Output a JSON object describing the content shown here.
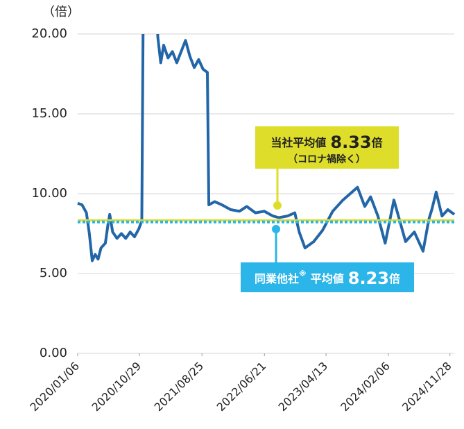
{
  "chart_data": {
    "type": "line",
    "y_label": "（倍）",
    "x": [
      "2020/01/06",
      "2020/01/27",
      "2020/02/17",
      "2020/03/02",
      "2020/03/16",
      "2020/03/30",
      "2020/04/13",
      "2020/04/27",
      "2020/05/18",
      "2020/06/01",
      "2020/06/08",
      "2020/06/22",
      "2020/07/13",
      "2020/08/03",
      "2020/08/24",
      "2020/09/14",
      "2020/10/05",
      "2020/10/26",
      "2020/11/09",
      "2020/11/16",
      "2021/01/18",
      "2021/01/25",
      "2021/02/08",
      "2021/02/22",
      "2021/03/15",
      "2021/04/05",
      "2021/04/26",
      "2021/06/07",
      "2021/06/28",
      "2021/07/19",
      "2021/08/09",
      "2021/08/30",
      "2021/09/20",
      "2021/09/27",
      "2021/10/25",
      "2021/11/29",
      "2022/01/10",
      "2022/02/21",
      "2022/03/28",
      "2022/05/09",
      "2022/06/20",
      "2022/08/01",
      "2022/08/29",
      "2022/10/10",
      "2022/11/14",
      "2022/12/05",
      "2023/01/02",
      "2023/02/13",
      "2023/03/27",
      "2023/05/15",
      "2023/07/03",
      "2023/09/11",
      "2023/10/16",
      "2023/11/13",
      "2023/12/18",
      "2024/01/22",
      "2024/03/04",
      "2024/04/29",
      "2024/06/10",
      "2024/07/22",
      "2024/08/19",
      "2024/09/02",
      "2024/09/23",
      "2024/10/21",
      "2024/11/18",
      "2024/12/19"
    ],
    "series": [
      {
        "color": "#2366a8",
        "values": [
          9.4,
          9.3,
          8.8,
          7.5,
          5.8,
          6.2,
          5.9,
          6.6,
          6.9,
          8.2,
          8.7,
          7.6,
          7.2,
          7.5,
          7.2,
          7.6,
          7.3,
          7.8,
          8.3,
          22,
          22,
          19.8,
          18.2,
          19.3,
          18.5,
          18.9,
          18.2,
          19.6,
          18.6,
          17.9,
          18.4,
          17.8,
          17.6,
          9.3,
          9.5,
          9.3,
          9.0,
          8.9,
          9.2,
          8.8,
          8.9,
          8.6,
          8.5,
          8.6,
          8.8,
          7.6,
          6.6,
          7.0,
          7.7,
          8.9,
          9.6,
          10.4,
          9.2,
          9.8,
          8.6,
          6.9,
          9.6,
          7.0,
          7.6,
          6.4,
          8.4,
          9.0,
          10.1,
          8.6,
          9.0,
          8.7
        ]
      }
    ],
    "xlim": [
      "2020/01/06",
      "2024/12/19"
    ],
    "xticks": [
      "2020/01/06",
      "2020/10/29",
      "2021/08/25",
      "2022/06/21",
      "2023/04/13",
      "2024/02/06",
      "2024/11/28"
    ],
    "ylim": [
      0,
      20
    ],
    "yticks": [
      {
        "value": 0,
        "label": "0.00"
      },
      {
        "value": 5,
        "label": "5.00"
      },
      {
        "value": 10,
        "label": "10.00"
      },
      {
        "value": 15,
        "label": "15.00"
      },
      {
        "value": 20,
        "label": "20.00"
      }
    ],
    "grid": true,
    "annotations": [
      {
        "label": "当社平均値",
        "value": 8.33,
        "unit": "倍",
        "note": "（コロナ禍除く）",
        "color": "#dede2a",
        "style": "solid"
      },
      {
        "label": "同業他社",
        "mark": "※",
        "label2": "平均値",
        "value": 8.23,
        "unit": "倍",
        "color": "#2bb5e8",
        "style": "dotted"
      }
    ]
  }
}
